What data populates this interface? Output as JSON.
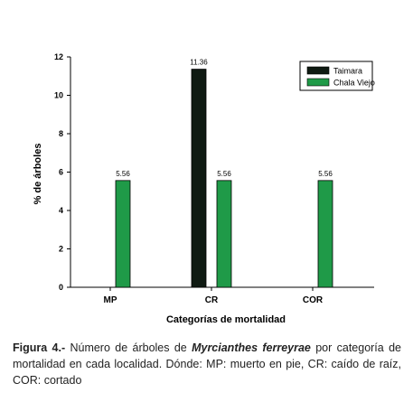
{
  "chart_data": {
    "type": "bar",
    "categories": [
      "MP",
      "CR",
      "COR"
    ],
    "series": [
      {
        "name": "Taimara",
        "color": "#0f1a12",
        "values": [
          0,
          11.36,
          0
        ],
        "labels": [
          "",
          "11.36",
          ""
        ]
      },
      {
        "name": "Chala Viejo",
        "color": "#1f9a48",
        "values": [
          5.56,
          5.56,
          5.56
        ],
        "labels": [
          "5.56",
          "5.56",
          "5.56"
        ]
      }
    ],
    "xlabel": "Categorías de mortalidad",
    "ylabel": "% de árboles",
    "ylim": [
      0,
      12
    ],
    "yticks": [
      0,
      2,
      4,
      6,
      8,
      10,
      12
    ],
    "grid": false,
    "legend_position": "top-right"
  },
  "caption": {
    "figure_label": "Figura 4.-",
    "text_before": " Número de árboles de ",
    "species": "Myrcianthes ferreyrae",
    "text_after": " por categoría de mortalidad en cada localidad. Dónde: MP: muerto en pie, CR: caído de raíz, COR: cortado"
  }
}
